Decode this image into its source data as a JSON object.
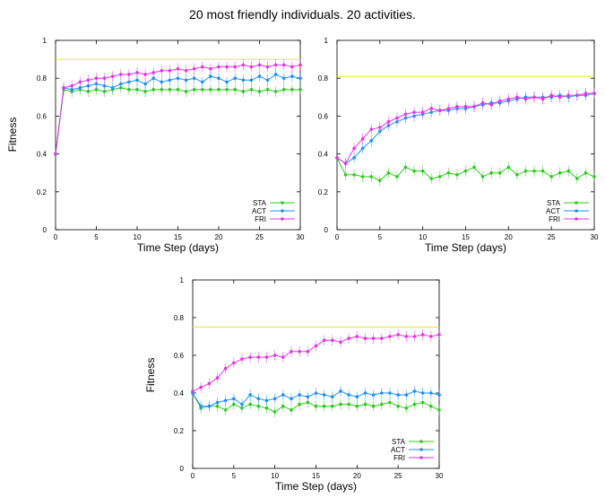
{
  "figure_title": "20 most friendly individuals. 20 activities.",
  "colors": {
    "STA": "#2ecc1f",
    "ACT": "#1f8fff",
    "FRI": "#e633e6",
    "ref": "#e6e62e",
    "frame": "#000000"
  },
  "chart_data": [
    {
      "type": "line",
      "xlabel": "Time Step (days)",
      "ylabel": "Fitness",
      "xlim": [
        0,
        30
      ],
      "ylim": [
        0,
        1
      ],
      "xticks": [
        "0",
        "5",
        "10",
        "15",
        "20",
        "25",
        "30"
      ],
      "yticks": [
        "0",
        "0.2",
        "0.4",
        "0.6",
        "0.8",
        "1"
      ],
      "legend_position": "bottom-right",
      "reference_line_y": 0.9,
      "x": [
        0,
        1,
        2,
        3,
        4,
        5,
        6,
        7,
        8,
        9,
        10,
        11,
        12,
        13,
        14,
        15,
        16,
        17,
        18,
        19,
        20,
        21,
        22,
        23,
        24,
        25,
        26,
        27,
        28,
        29,
        30
      ],
      "series": [
        {
          "name": "STA",
          "values": [
            0.4,
            0.74,
            0.73,
            0.74,
            0.73,
            0.74,
            0.73,
            0.74,
            0.75,
            0.74,
            0.74,
            0.73,
            0.74,
            0.74,
            0.74,
            0.74,
            0.73,
            0.74,
            0.74,
            0.74,
            0.74,
            0.74,
            0.74,
            0.73,
            0.74,
            0.73,
            0.74,
            0.73,
            0.74,
            0.74,
            0.74
          ]
        },
        {
          "name": "ACT",
          "values": [
            0.4,
            0.75,
            0.74,
            0.75,
            0.76,
            0.77,
            0.76,
            0.75,
            0.77,
            0.78,
            0.79,
            0.77,
            0.8,
            0.78,
            0.79,
            0.8,
            0.79,
            0.8,
            0.78,
            0.81,
            0.8,
            0.78,
            0.8,
            0.79,
            0.79,
            0.81,
            0.79,
            0.82,
            0.8,
            0.81,
            0.8
          ]
        },
        {
          "name": "FRI",
          "values": [
            0.4,
            0.75,
            0.76,
            0.78,
            0.79,
            0.8,
            0.8,
            0.81,
            0.82,
            0.82,
            0.83,
            0.82,
            0.83,
            0.84,
            0.84,
            0.85,
            0.84,
            0.85,
            0.86,
            0.85,
            0.86,
            0.86,
            0.86,
            0.87,
            0.86,
            0.87,
            0.86,
            0.87,
            0.87,
            0.86,
            0.87
          ]
        }
      ]
    },
    {
      "type": "line",
      "xlabel": "Time Step (days)",
      "ylabel": "",
      "xlim": [
        0,
        30
      ],
      "ylim": [
        0,
        1
      ],
      "xticks": [
        "0",
        "5",
        "10",
        "15",
        "20",
        "25",
        "30"
      ],
      "yticks": [
        "0",
        "0.2",
        "0.4",
        "0.6",
        "0.8",
        "1"
      ],
      "legend_position": "bottom-right",
      "reference_line_y": 0.81,
      "x": [
        0,
        1,
        2,
        3,
        4,
        5,
        6,
        7,
        8,
        9,
        10,
        11,
        12,
        13,
        14,
        15,
        16,
        17,
        18,
        19,
        20,
        21,
        22,
        23,
        24,
        25,
        26,
        27,
        28,
        29,
        30
      ],
      "series": [
        {
          "name": "STA",
          "values": [
            0.38,
            0.29,
            0.29,
            0.28,
            0.28,
            0.26,
            0.3,
            0.28,
            0.33,
            0.31,
            0.31,
            0.27,
            0.28,
            0.3,
            0.29,
            0.31,
            0.33,
            0.28,
            0.3,
            0.3,
            0.33,
            0.29,
            0.31,
            0.31,
            0.31,
            0.28,
            0.3,
            0.31,
            0.27,
            0.3,
            0.28
          ]
        },
        {
          "name": "ACT",
          "values": [
            0.38,
            0.35,
            0.38,
            0.43,
            0.47,
            0.52,
            0.55,
            0.57,
            0.59,
            0.6,
            0.61,
            0.62,
            0.63,
            0.63,
            0.64,
            0.64,
            0.65,
            0.66,
            0.67,
            0.67,
            0.68,
            0.69,
            0.7,
            0.7,
            0.7,
            0.7,
            0.71,
            0.7,
            0.71,
            0.71,
            0.72
          ]
        },
        {
          "name": "FRI",
          "values": [
            0.38,
            0.35,
            0.43,
            0.48,
            0.53,
            0.54,
            0.57,
            0.59,
            0.61,
            0.62,
            0.62,
            0.64,
            0.63,
            0.64,
            0.65,
            0.65,
            0.65,
            0.67,
            0.66,
            0.68,
            0.69,
            0.7,
            0.69,
            0.7,
            0.69,
            0.71,
            0.7,
            0.71,
            0.71,
            0.72,
            0.72
          ]
        }
      ]
    },
    {
      "type": "line",
      "xlabel": "Time Step (days)",
      "ylabel": "Fitness",
      "xlim": [
        0,
        30
      ],
      "ylim": [
        0,
        1
      ],
      "xticks": [
        "0",
        "5",
        "10",
        "15",
        "20",
        "25",
        "30"
      ],
      "yticks": [
        "0",
        "0.2",
        "0.4",
        "0.6",
        "0.8",
        "1"
      ],
      "legend_position": "bottom-right",
      "reference_line_y": 0.75,
      "x": [
        0,
        1,
        2,
        3,
        4,
        5,
        6,
        7,
        8,
        9,
        10,
        11,
        12,
        13,
        14,
        15,
        16,
        17,
        18,
        19,
        20,
        21,
        22,
        23,
        24,
        25,
        26,
        27,
        28,
        29,
        30
      ],
      "series": [
        {
          "name": "STA",
          "values": [
            0.4,
            0.32,
            0.33,
            0.33,
            0.31,
            0.34,
            0.32,
            0.34,
            0.33,
            0.32,
            0.3,
            0.33,
            0.31,
            0.34,
            0.35,
            0.33,
            0.33,
            0.33,
            0.34,
            0.34,
            0.33,
            0.34,
            0.33,
            0.34,
            0.35,
            0.33,
            0.32,
            0.34,
            0.35,
            0.33,
            0.31
          ]
        },
        {
          "name": "ACT",
          "values": [
            0.4,
            0.33,
            0.33,
            0.35,
            0.36,
            0.37,
            0.34,
            0.39,
            0.37,
            0.36,
            0.37,
            0.39,
            0.37,
            0.39,
            0.38,
            0.4,
            0.39,
            0.38,
            0.41,
            0.39,
            0.38,
            0.4,
            0.39,
            0.4,
            0.4,
            0.39,
            0.39,
            0.41,
            0.4,
            0.4,
            0.39
          ]
        },
        {
          "name": "FRI",
          "values": [
            0.41,
            0.43,
            0.45,
            0.48,
            0.53,
            0.56,
            0.58,
            0.59,
            0.59,
            0.59,
            0.6,
            0.59,
            0.62,
            0.62,
            0.62,
            0.65,
            0.68,
            0.68,
            0.67,
            0.69,
            0.7,
            0.69,
            0.69,
            0.69,
            0.7,
            0.71,
            0.7,
            0.7,
            0.71,
            0.7,
            0.71
          ]
        }
      ]
    }
  ]
}
